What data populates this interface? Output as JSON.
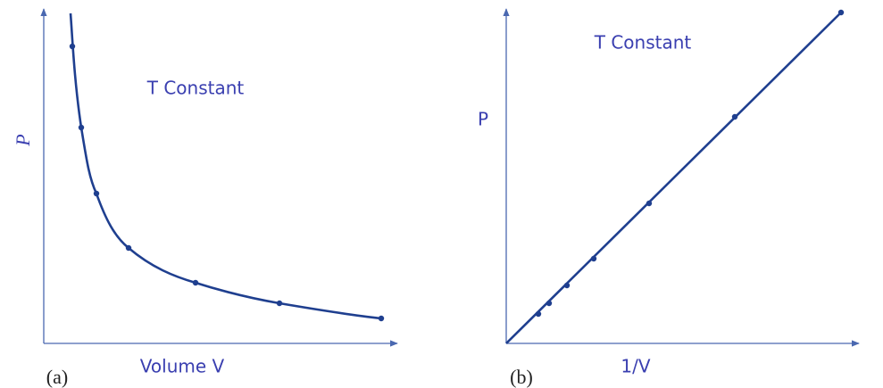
{
  "panels": [
    {
      "tag": "(a)",
      "y_label": "P",
      "x_label": "Volume V",
      "note": "T Constant"
    },
    {
      "tag": "(b)",
      "y_label": "P",
      "x_label": "1/V",
      "note": "T Constant"
    }
  ]
}
